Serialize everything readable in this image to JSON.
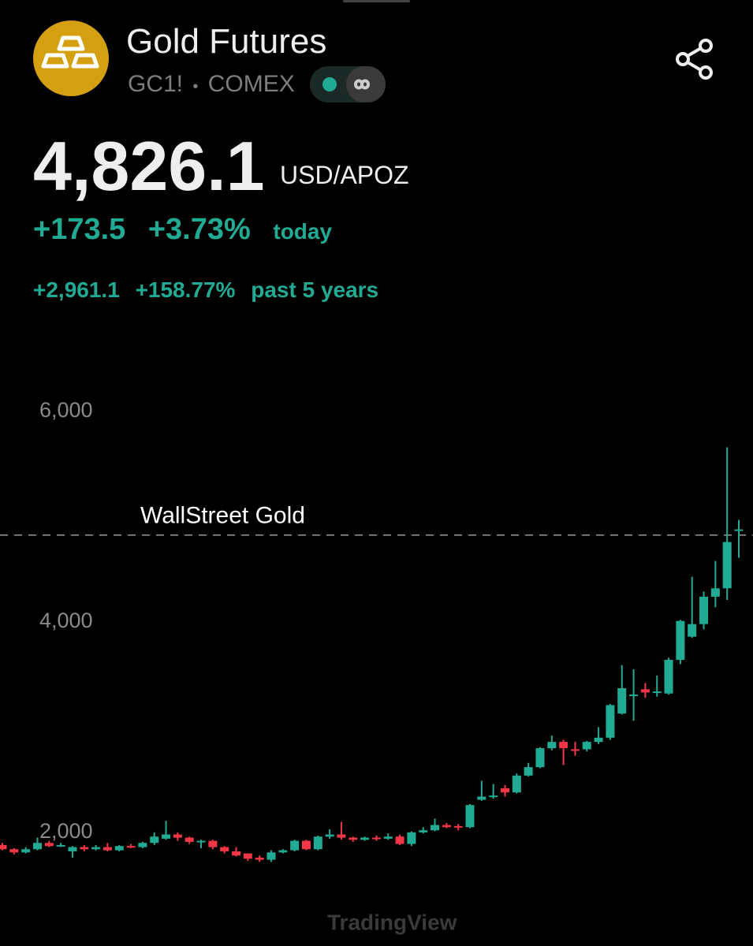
{
  "header": {
    "title": "Gold Futures",
    "symbol": "GC1!",
    "separator": "•",
    "exchange": "COMEX"
  },
  "quote": {
    "price": "4,826.1",
    "unit": "USD/APOZ",
    "today": {
      "change": "+173.5",
      "change_pct": "+3.73%",
      "period": "today"
    },
    "long": {
      "change": "+2,961.1",
      "change_pct": "+158.77%",
      "period": "past 5 years"
    }
  },
  "chart_data": {
    "type": "candlestick",
    "open": [
      1880,
      1840,
      1810,
      1840,
      1900,
      1870,
      1820,
      1860,
      1840,
      1860,
      1830,
      1870,
      1860,
      1900,
      1940,
      1980,
      1950,
      1910,
      1920,
      1860,
      1820,
      1800,
      1760,
      1740,
      1810,
      1830,
      1920,
      1840,
      1960,
      1980,
      1950,
      1930,
      1950,
      1940,
      1960,
      1890,
      2000,
      2020,
      2070,
      2060,
      2050,
      2310,
      2340,
      2420,
      2380,
      2540,
      2620,
      2800,
      2860,
      2790,
      2790,
      2860,
      2900,
      3130,
      3300,
      3360,
      3330,
      3320,
      3640,
      3860,
      3980,
      4240,
      4320,
      4870
    ],
    "high": [
      1900,
      1850,
      1860,
      1950,
      1920,
      1900,
      1870,
      1880,
      1880,
      1900,
      1880,
      1890,
      1910,
      2000,
      2110,
      2000,
      1960,
      1930,
      1930,
      1870,
      1860,
      1800,
      1780,
      1830,
      1840,
      1930,
      1930,
      1970,
      2030,
      2100,
      1960,
      1960,
      1970,
      1990,
      1980,
      2010,
      2050,
      2130,
      2090,
      2080,
      2270,
      2490,
      2460,
      2450,
      2560,
      2660,
      2810,
      2920,
      2880,
      2860,
      2870,
      3000,
      3220,
      3590,
      3550,
      3420,
      3490,
      3660,
      4020,
      4430,
      4290,
      4580,
      5660,
      4970
    ],
    "low": [
      1830,
      1790,
      1800,
      1830,
      1860,
      1860,
      1760,
      1820,
      1830,
      1820,
      1820,
      1850,
      1850,
      1880,
      1930,
      1920,
      1890,
      1850,
      1840,
      1800,
      1770,
      1730,
      1720,
      1720,
      1800,
      1820,
      1830,
      1830,
      1940,
      1930,
      1910,
      1920,
      1920,
      1930,
      1880,
      1870,
      1990,
      2010,
      2040,
      2020,
      2040,
      2300,
      2320,
      2340,
      2370,
      2530,
      2610,
      2780,
      2640,
      2730,
      2770,
      2840,
      2880,
      3120,
      3060,
      3280,
      3290,
      3310,
      3600,
      3850,
      3930,
      4140,
      4210,
      4610
    ],
    "close": [
      1840,
      1810,
      1840,
      1900,
      1870,
      1880,
      1860,
      1840,
      1860,
      1830,
      1870,
      1860,
      1900,
      1960,
      1980,
      1950,
      1910,
      1920,
      1860,
      1820,
      1780,
      1750,
      1740,
      1810,
      1830,
      1920,
      1840,
      1960,
      1980,
      1950,
      1930,
      1950,
      1940,
      1960,
      1890,
      2000,
      2020,
      2070,
      2050,
      2050,
      2260,
      2340,
      2350,
      2380,
      2540,
      2620,
      2800,
      2860,
      2800,
      2780,
      2860,
      2900,
      3210,
      3370,
      3310,
      3330,
      3340,
      3640,
      4010,
      3980,
      4240,
      4320,
      4760,
      4880
    ],
    "up_color": "#22ab94",
    "down_color": "#f23645",
    "ylim": [
      920,
      6690
    ],
    "yticks": [
      {
        "value": 2000,
        "label": "2,000"
      },
      {
        "value": 4000,
        "label": "4,000"
      },
      {
        "value": 6000,
        "label": "6,000"
      }
    ],
    "price_line": 4826.1,
    "annotation": "WallStreet Gold",
    "watermark": "TradingView"
  }
}
